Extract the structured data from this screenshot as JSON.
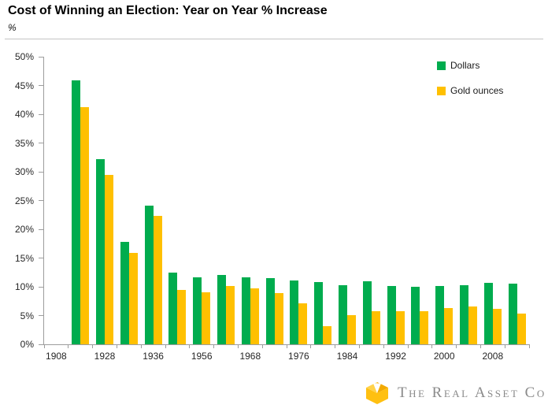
{
  "header": {
    "title": "Cost of Winning an Election: Year on Year % Increase",
    "subtitle": "%"
  },
  "chart_data": {
    "type": "bar",
    "title": "Cost of Winning an Election: Year on Year % Increase",
    "ylabel": "%",
    "xlabel": "",
    "ylim": [
      0,
      50
    ],
    "grid": false,
    "legend_position": "top-right",
    "y_tick_labels": [
      "0%",
      "5%",
      "10%",
      "15%",
      "20%",
      "25%",
      "30%",
      "35%",
      "40%",
      "45%",
      "50%"
    ],
    "categories": [
      "1908",
      "",
      "1928",
      "",
      "1936",
      "",
      "1956",
      "",
      "1968",
      "",
      "1976",
      "",
      "1984",
      "",
      "1992",
      "",
      "2000",
      "",
      "2008",
      ""
    ],
    "series": [
      {
        "name": "Dollars",
        "color": "#00AC4E",
        "values": [
          null,
          45.9,
          32.2,
          17.8,
          24.1,
          12.4,
          11.6,
          12.0,
          11.7,
          11.5,
          11.1,
          10.8,
          10.3,
          10.9,
          10.2,
          10.0,
          10.1,
          10.3,
          10.7,
          10.6
        ]
      },
      {
        "name": "Gold ounces",
        "color": "#FFC000",
        "values": [
          null,
          41.2,
          29.5,
          15.9,
          22.3,
          9.5,
          9.0,
          10.2,
          9.7,
          8.9,
          7.1,
          3.2,
          5.1,
          5.8,
          5.8,
          5.7,
          6.3,
          6.6,
          6.1,
          5.4
        ]
      }
    ]
  },
  "logo": {
    "text": "The Real Asset Co",
    "cube": {
      "face_top_left": "#FFD24A",
      "face_top_right": "#F2A900",
      "body": "#FFC011",
      "notch": "#FFFFFF"
    }
  }
}
